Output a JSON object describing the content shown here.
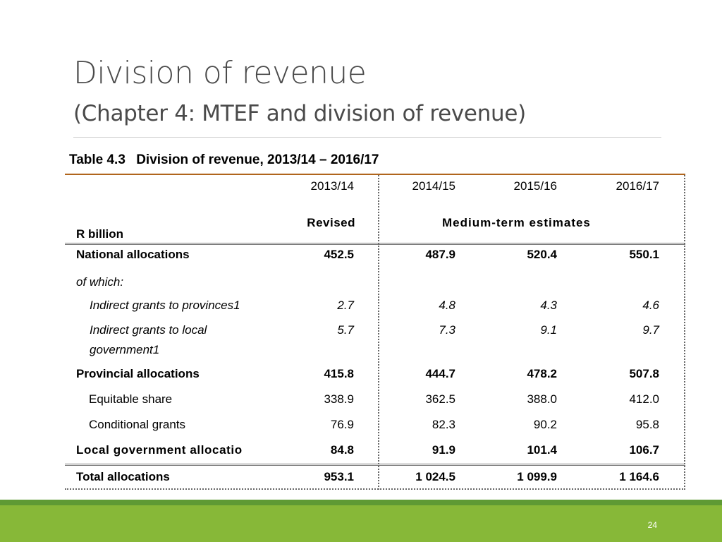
{
  "slide": {
    "title": "Division of revenue",
    "subtitle": "(Chapter 4: MTEF and division of revenue)",
    "page_number": "24"
  },
  "table": {
    "caption_number": "Table 4.3",
    "caption_text": "Division of revenue, 2013/14 – 2016/17",
    "unit_label": "R billion",
    "years": [
      "2013/14",
      "2014/15",
      "2015/16",
      "2016/17"
    ],
    "revised_label": "Revised",
    "estimates_label": "Medium-term estimates",
    "rows": [
      {
        "label": "National allocations",
        "values": [
          "452.5",
          "487.9",
          "520.4",
          "550.1"
        ]
      },
      {
        "label": "of which:"
      },
      {
        "label": "Indirect grants to provinces1",
        "values": [
          "2.7",
          "4.8",
          "4.3",
          "4.6"
        ]
      },
      {
        "label": "Indirect grants to local",
        "label2": "government1",
        "values": [
          "5.7",
          "7.3",
          "9.1",
          "9.7"
        ]
      },
      {
        "label": "Provincial allocations",
        "values": [
          "415.8",
          "444.7",
          "478.2",
          "507.8"
        ]
      },
      {
        "label": "Equitable share",
        "values": [
          "338.9",
          "362.5",
          "388.0",
          "412.0"
        ]
      },
      {
        "label": "Conditional grants",
        "values": [
          "76.9",
          "82.3",
          "90.2",
          "95.8"
        ]
      },
      {
        "label": "Local government allocatio",
        "values": [
          "84.8",
          "91.9",
          "101.4",
          "106.7"
        ]
      },
      {
        "label": "Total allocations",
        "values": [
          "953.1",
          "1 024.5",
          "1 099.9",
          "1 164.6"
        ]
      }
    ]
  },
  "colors": {
    "footer_green": "#87b838",
    "footer_dark_green": "#5e9a34",
    "table_top_rule": "#b0651c",
    "title_text": "#4a4a4a"
  }
}
